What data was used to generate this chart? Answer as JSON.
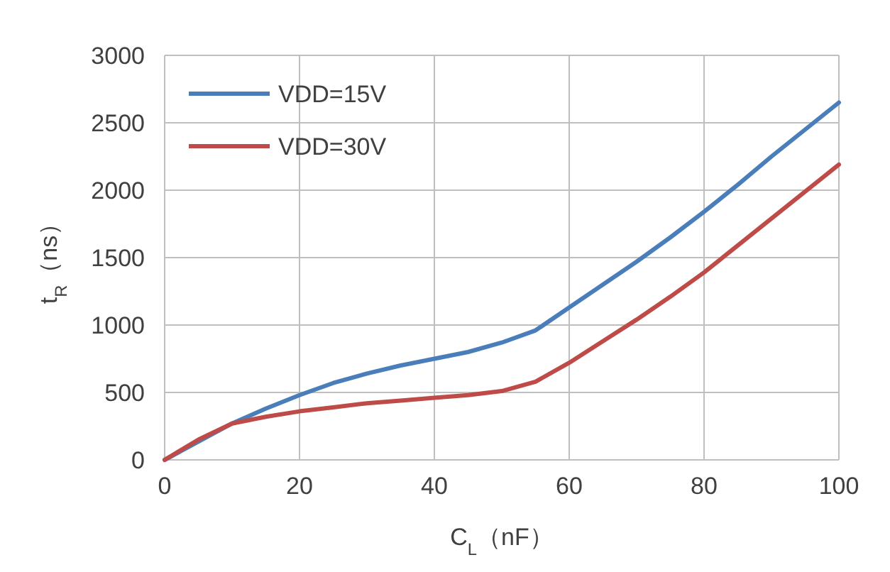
{
  "chart_data": {
    "type": "line",
    "xlabel": "C$_{L}$（nF）",
    "ylabel": "t$_{R}$（ns）",
    "xlim": [
      0,
      100
    ],
    "xticks": [
      0,
      20,
      40,
      60,
      80,
      100
    ],
    "ylim": [
      0,
      3000
    ],
    "yticks": [
      0,
      500,
      1000,
      1500,
      2000,
      2500,
      3000
    ],
    "grid": true,
    "legend": "top left",
    "marker": "none",
    "line_style": "solid",
    "series": [
      {
        "name": "VDD=15V",
        "color": "#4a7ebb",
        "x": [
          0,
          10,
          15,
          20,
          25,
          30,
          35,
          40,
          45,
          50,
          55,
          60,
          65,
          70,
          75,
          80,
          85,
          90,
          95,
          100
        ],
        "values": [
          0,
          270,
          380,
          480,
          570,
          640,
          700,
          750,
          800,
          870,
          960,
          1130,
          1300,
          1470,
          1650,
          1840,
          2040,
          2250,
          2450,
          2650
        ]
      },
      {
        "name": "VDD=30V",
        "color": "#be4b48",
        "x": [
          0,
          5,
          10,
          15,
          20,
          25,
          30,
          35,
          40,
          45,
          50,
          55,
          60,
          65,
          70,
          75,
          80,
          85,
          90,
          95,
          100
        ],
        "values": [
          0,
          150,
          270,
          320,
          360,
          390,
          420,
          440,
          460,
          480,
          510,
          580,
          720,
          880,
          1040,
          1210,
          1390,
          1590,
          1790,
          1990,
          2190
        ]
      }
    ]
  }
}
